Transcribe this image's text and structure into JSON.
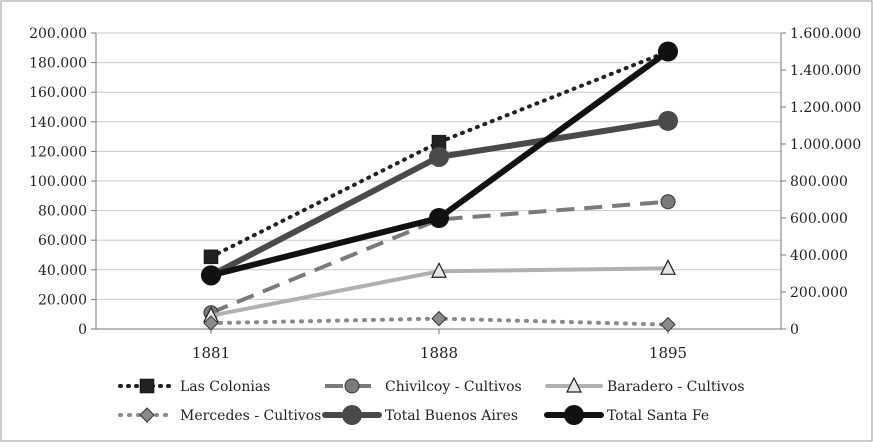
{
  "chart_data": {
    "type": "line",
    "categories": [
      "1881",
      "1888",
      "1895"
    ],
    "left_axis": {
      "min": 0,
      "max": 200000,
      "step": 20000,
      "tick_labels": [
        "0",
        "20.000",
        "40.000",
        "60.000",
        "80.000",
        "100.000",
        "120.000",
        "140.000",
        "160.000",
        "180.000",
        "200.000"
      ]
    },
    "right_axis": {
      "min": 0,
      "max": 1600000,
      "step": 200000,
      "tick_labels": [
        "0",
        "200.000",
        "400.000",
        "600.000",
        "800.000",
        "1.000.000",
        "1.200.000",
        "1.400.000",
        "1.600.000"
      ]
    },
    "grid": true,
    "legend_position": "bottom",
    "series": [
      {
        "name": "Las Colonias",
        "axis": "right",
        "values": [
          390000,
          1010000,
          1500000
        ],
        "color": "#222222",
        "dash": "dotted-heavy",
        "marker": "square"
      },
      {
        "name": "Chivilcoy - Cultivos",
        "axis": "left",
        "values": [
          11000,
          74000,
          86000
        ],
        "color": "#7a7a7a",
        "dash": "dashed",
        "marker": "circle"
      },
      {
        "name": "Baradero - Cultivos",
        "axis": "left",
        "values": [
          9000,
          39000,
          41000
        ],
        "color": "#b0b0b0",
        "dash": "solid",
        "marker": "triangle"
      },
      {
        "name": "Mercedes - Cultivos",
        "axis": "left",
        "values": [
          4000,
          7000,
          3000
        ],
        "color": "#8a8a8a",
        "dash": "dotted",
        "marker": "diamond"
      },
      {
        "name": "Total Buenos Aires",
        "axis": "right",
        "values": [
          290000,
          930000,
          1125000
        ],
        "color": "#4a4a4a",
        "dash": "solid",
        "marker": "circle"
      },
      {
        "name": "Total Santa Fe",
        "axis": "right",
        "values": [
          290000,
          600000,
          1500000
        ],
        "color": "#111111",
        "dash": "solid",
        "marker": "circle"
      }
    ]
  }
}
